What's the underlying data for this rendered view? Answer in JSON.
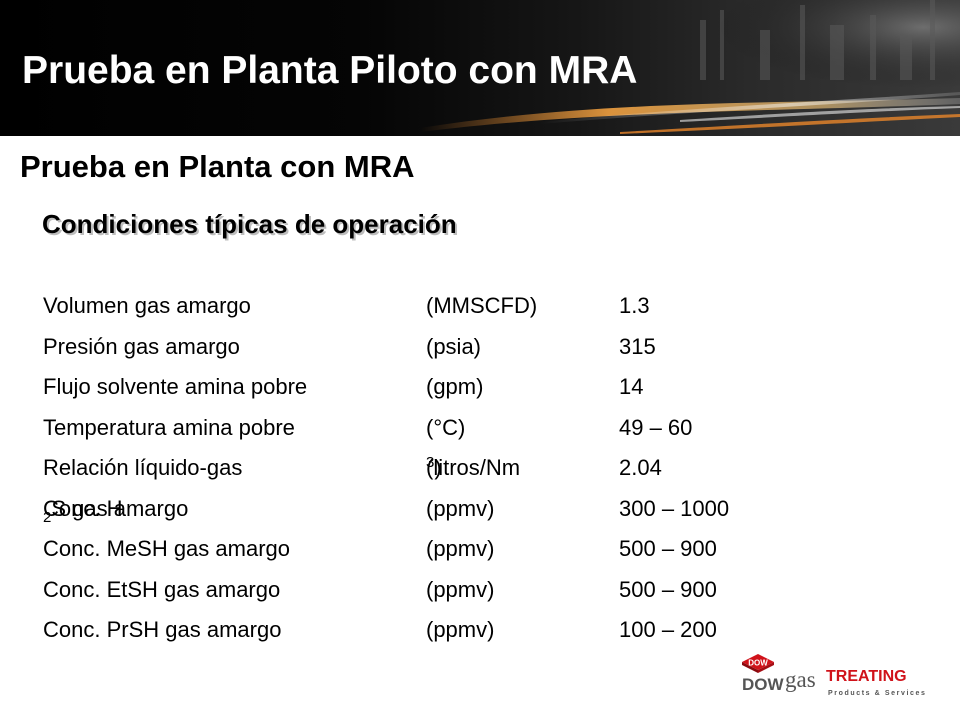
{
  "slide": {
    "title": "Prueba en Planta Piloto con MRA",
    "subtitle": "Prueba en Planta con MRA",
    "section_heading": "Condiciones típicas de operación"
  },
  "parameters": [
    {
      "name": "Volumen gas amargo",
      "unit": "(MMSCFD)",
      "value": "1.3"
    },
    {
      "name": "Presión gas amargo",
      "unit": "(psia)",
      "value": "315"
    },
    {
      "name": "Flujo solvente amina pobre",
      "unit": "(gpm)",
      "value": "14"
    },
    {
      "name": "Temperatura amina pobre",
      "unit": "(°C)",
      "value": "49 – 60"
    },
    {
      "name": "Relación líquido-gas",
      "unit_pre": "(litros/Nm",
      "unit_sup": "3",
      "unit_post": ")",
      "value": "2.04"
    },
    {
      "name_pre": "Conc. H",
      "name_sub": "2",
      "name_post": "S gas amargo",
      "unit": "(ppmv)",
      "value": "300 – 1000"
    },
    {
      "name": "Conc. MeSH gas amargo",
      "unit": "(ppmv)",
      "value": "500 – 900"
    },
    {
      "name": "Conc. EtSH gas amargo",
      "unit": "(ppmv)",
      "value": "500 – 900"
    },
    {
      "name": "Conc. PrSH gas amargo",
      "unit": "(ppmv)",
      "value": "100 – 200"
    }
  ],
  "logo": {
    "badge": "DOW",
    "brand_dow": "DOW",
    "brand_gas": "gas",
    "brand_treating": "TREATING",
    "tagline": "Products & Services"
  },
  "colors": {
    "banner_black": "#000000",
    "banner_orange": "#e8862a",
    "dow_red": "#d0121a",
    "gray_text": "#555555"
  }
}
